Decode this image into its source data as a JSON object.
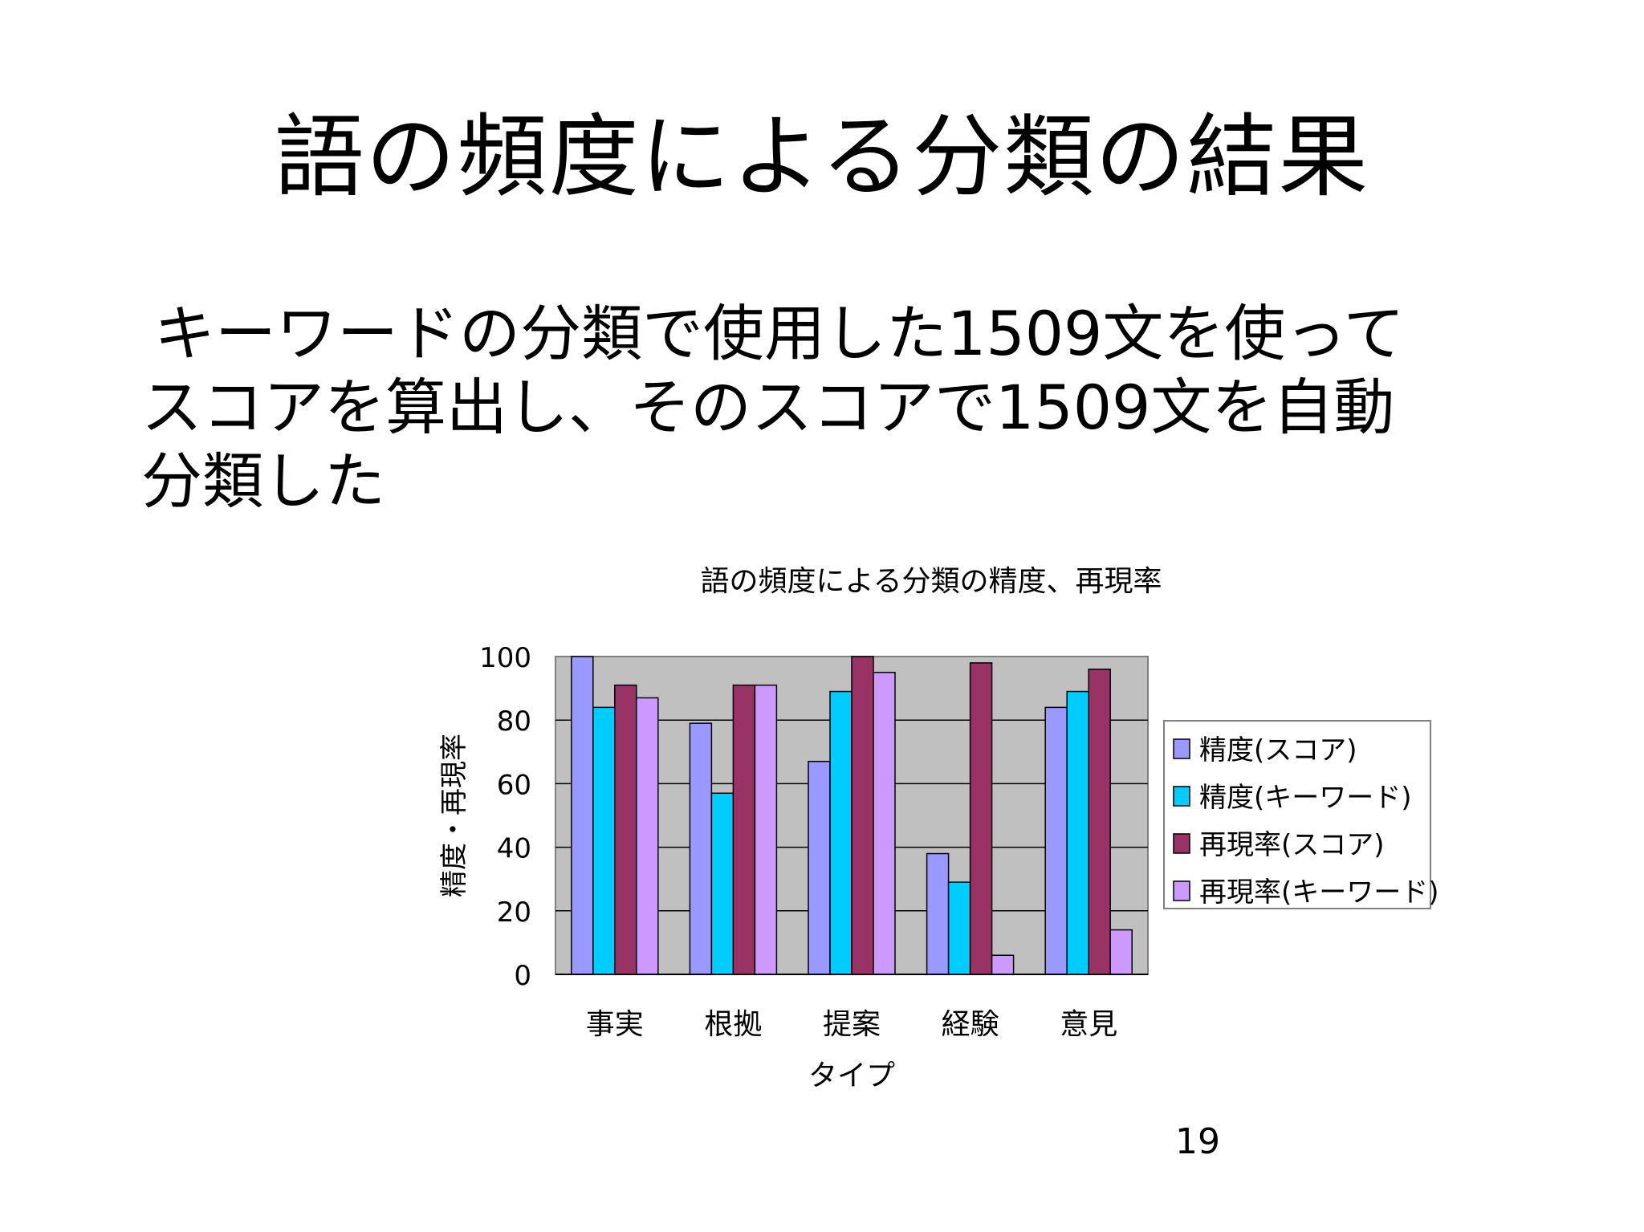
{
  "slide": {
    "title": "語の頻度による分類の結果",
    "body_lines": [
      "キーワードの分類で使用した1509文を使って",
      "スコアを算出し、そのスコアで1509文を自動",
      "分類した"
    ],
    "page_number": "19"
  },
  "chart_data": {
    "type": "bar",
    "title": "語の頻度による分類の精度、再現率",
    "xlabel": "タイプ",
    "ylabel": "精度・再現率",
    "categories": [
      "事実",
      "根拠",
      "提案",
      "経験",
      "意見"
    ],
    "ylim": [
      0,
      100
    ],
    "yticks": [
      0,
      20,
      40,
      60,
      80,
      100
    ],
    "grid": true,
    "plot_background": "#c0c0c0",
    "legend_position": "right",
    "series": [
      {
        "name": "精度(スコア)",
        "color": "#9999ff",
        "values": [
          100,
          79,
          67,
          38,
          84
        ]
      },
      {
        "name": "精度(キーワード)",
        "color": "#00ccff",
        "values": [
          84,
          57,
          89,
          29,
          89
        ]
      },
      {
        "name": "再現率(スコア)",
        "color": "#993366",
        "values": [
          91,
          91,
          100,
          98,
          96
        ]
      },
      {
        "name": "再現率(キーワード)",
        "color": "#cc99ff",
        "values": [
          87,
          91,
          95,
          6,
          14
        ]
      }
    ]
  }
}
